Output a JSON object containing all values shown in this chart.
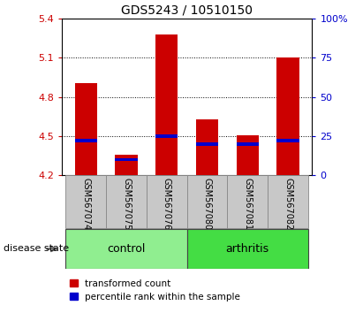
{
  "title": "GDS5243 / 10510150",
  "samples": [
    "GSM567074",
    "GSM567075",
    "GSM567076",
    "GSM567080",
    "GSM567081",
    "GSM567082"
  ],
  "groups": [
    "control",
    "control",
    "control",
    "arthritis",
    "arthritis",
    "arthritis"
  ],
  "group_labels": [
    "control",
    "arthritis"
  ],
  "transformed_counts": [
    4.91,
    4.36,
    5.28,
    4.63,
    4.51,
    5.1
  ],
  "percentile_ranks": [
    22,
    10,
    25,
    20,
    20,
    22
  ],
  "bar_bottom": 4.2,
  "ylim_left": [
    4.2,
    5.4
  ],
  "ylim_right": [
    0,
    100
  ],
  "yticks_left": [
    4.2,
    4.5,
    4.8,
    5.1,
    5.4
  ],
  "yticks_right": [
    0,
    25,
    50,
    75,
    100
  ],
  "ytick_labels_left": [
    "4.2",
    "4.5",
    "4.8",
    "5.1",
    "5.4"
  ],
  "ytick_labels_right": [
    "0",
    "25",
    "50",
    "75",
    "100%"
  ],
  "left_color": "#CC0000",
  "right_color": "#0000CC",
  "bar_width": 0.55,
  "label_transformed": "transformed count",
  "label_percentile": "percentile rank within the sample",
  "disease_state_label": "disease state",
  "ctrl_color": "#90EE90",
  "arth_color": "#44DD44",
  "gray_color": "#C8C8C8",
  "grid_color": "black",
  "grid_lines": [
    4.5,
    4.8,
    5.1
  ]
}
